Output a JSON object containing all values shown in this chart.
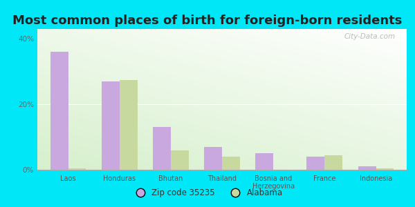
{
  "title": "Most common places of birth for foreign-born residents",
  "categories": [
    "Laos",
    "Honduras",
    "Bhutan",
    "Thailand",
    "Bosnia and\nHerzegovina",
    "France",
    "Indonesia"
  ],
  "zip_values": [
    36,
    27,
    13,
    7,
    5,
    4,
    1
  ],
  "state_values": [
    0.5,
    27.5,
    6,
    4,
    0,
    4.5,
    0.5
  ],
  "zip_color": "#c9a8e0",
  "state_color": "#c8d9a0",
  "ylabel_ticks": [
    "0%",
    "20%",
    "40%"
  ],
  "ytick_vals": [
    0,
    20,
    40
  ],
  "ylim": [
    0,
    43
  ],
  "background_outer": "#00e8f8",
  "title_fontsize": 13,
  "legend_labels": [
    "Zip code 35235",
    "Alabama"
  ],
  "watermark": "City-Data.com"
}
